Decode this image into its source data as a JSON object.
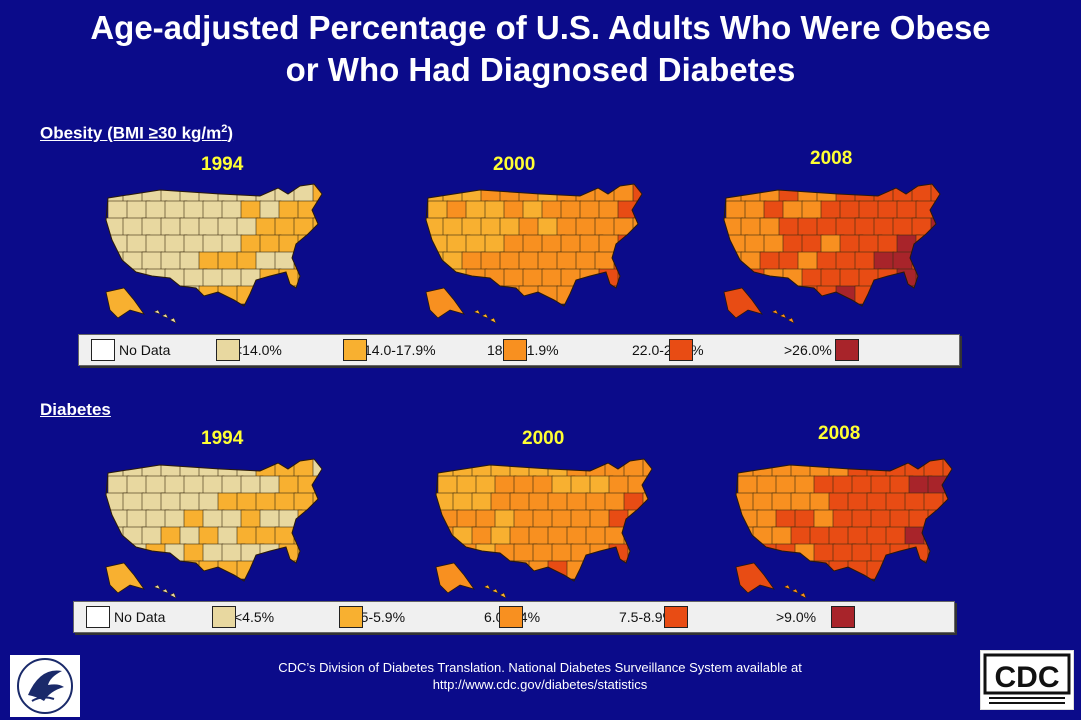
{
  "title": {
    "line1": "Age-adjusted Percentage of U.S. Adults Who Were Obese",
    "line2": "or Who Had Diagnosed Diabetes"
  },
  "obesity": {
    "heading_prefix": "Obesity (BMI ≥30 kg/m",
    "heading_sup": "2",
    "heading_suffix": ")",
    "years": [
      "1994",
      "2000",
      "2008"
    ],
    "legend": [
      {
        "label": "No Data",
        "color": "#ffffff"
      },
      {
        "label": "<14.0%",
        "color": "#e8d8a0"
      },
      {
        "label": "14.0-17.9%",
        "color": "#f8b030"
      },
      {
        "label": "18.0-21.9%",
        "color": "#f89020"
      },
      {
        "label": "22.0-25.9%",
        "color": "#e84c14"
      },
      {
        "label": ">26.0%",
        "color": "#a8242a"
      }
    ]
  },
  "diabetes": {
    "heading": "Diabetes",
    "years": [
      "1994",
      "2000",
      "2008"
    ],
    "legend": [
      {
        "label": "No Data",
        "color": "#ffffff"
      },
      {
        "label": "<4.5%",
        "color": "#e8d8a0"
      },
      {
        "label": "4.5-5.9%",
        "color": "#f8b030"
      },
      {
        "label": "6.0-7.4%",
        "color": "#f89020"
      },
      {
        "label": "7.5-8.9%",
        "color": "#e84c14"
      },
      {
        "label": ">9.0%",
        "color": "#a8242a"
      }
    ]
  },
  "map_tones": {
    "obesity_1994": [
      "#e8d8a0",
      "#f8b030"
    ],
    "obesity_2000": [
      "#f8b030",
      "#f89020",
      "#e84c14"
    ],
    "obesity_2008": [
      "#f89020",
      "#e84c14",
      "#a8242a"
    ],
    "diabetes_1994": [
      "#e8d8a0",
      "#f8b030"
    ],
    "diabetes_2000": [
      "#f8b030",
      "#f89020",
      "#e84c14"
    ],
    "diabetes_2008": [
      "#f89020",
      "#e84c14",
      "#a8242a"
    ]
  },
  "footer": {
    "line1": "CDC’s Division of Diabetes Translation. National Diabetes Surveillance System available at",
    "line2": "http://www.cdc.gov/diabetes/statistics",
    "cdc_logo_text": "CDC"
  }
}
